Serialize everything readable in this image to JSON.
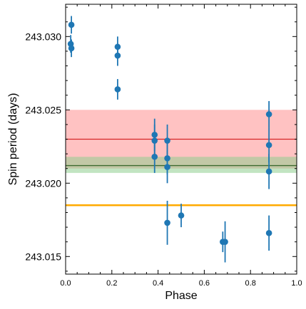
{
  "chart_data": {
    "type": "scatter",
    "title": "",
    "xlabel": "Phase",
    "ylabel": "Spin period (days)",
    "xlim": [
      0.0,
      1.0
    ],
    "ylim": [
      243.0138,
      243.0322
    ],
    "x_ticks": [
      0.0,
      0.2,
      0.4,
      0.6,
      0.8,
      1.0
    ],
    "x_tick_labels": [
      "0.0",
      "0.2",
      "0.4",
      "0.6",
      "0.8",
      "1.0"
    ],
    "y_ticks": [
      243.015,
      243.02,
      243.025,
      243.03
    ],
    "y_tick_labels": [
      "243.015",
      "243.020",
      "243.025",
      "243.030"
    ],
    "grid": false,
    "colors": {
      "points": "#1f77b4",
      "red_band": "#ff9999",
      "red_line": "#d62728",
      "green_band": "#8fce8f",
      "green_line": "#3d6b2f",
      "orange_line": "#ffaa00"
    },
    "bands": [
      {
        "center": 243.023,
        "low": 243.021,
        "high": 243.025,
        "color": "red"
      },
      {
        "center": 243.0212,
        "low": 243.0207,
        "high": 243.0218,
        "color": "green"
      }
    ],
    "hlines": [
      {
        "y": 243.0185,
        "color": "orange"
      }
    ],
    "points": [
      {
        "x": 0.025,
        "y": 243.0308,
        "err": 0.0006
      },
      {
        "x": 0.022,
        "y": 243.0295,
        "err": 0.0006
      },
      {
        "x": 0.025,
        "y": 243.0292,
        "err": 0.0006
      },
      {
        "x": 0.225,
        "y": 243.0293,
        "err": 0.0007
      },
      {
        "x": 0.225,
        "y": 243.0287,
        "err": 0.0007
      },
      {
        "x": 0.225,
        "y": 243.0264,
        "err": 0.0007
      },
      {
        "x": 0.385,
        "y": 243.0233,
        "err": 0.0011
      },
      {
        "x": 0.385,
        "y": 243.0229,
        "err": 0.0011
      },
      {
        "x": 0.385,
        "y": 243.0218,
        "err": 0.0011
      },
      {
        "x": 0.44,
        "y": 243.0229,
        "err": 0.0011
      },
      {
        "x": 0.44,
        "y": 243.0217,
        "err": 0.0011
      },
      {
        "x": 0.44,
        "y": 243.0211,
        "err": 0.0011
      },
      {
        "x": 0.44,
        "y": 243.0173,
        "err": 0.0015
      },
      {
        "x": 0.5,
        "y": 243.0178,
        "err": 0.0008
      },
      {
        "x": 0.68,
        "y": 243.016,
        "err": 0.0007
      },
      {
        "x": 0.69,
        "y": 243.016,
        "err": 0.0014
      },
      {
        "x": 0.88,
        "y": 243.0247,
        "err": 0.0009
      },
      {
        "x": 0.88,
        "y": 243.0226,
        "err": 0.0012
      },
      {
        "x": 0.88,
        "y": 243.0208,
        "err": 0.0012
      },
      {
        "x": 0.88,
        "y": 243.0166,
        "err": 0.0012
      }
    ]
  }
}
